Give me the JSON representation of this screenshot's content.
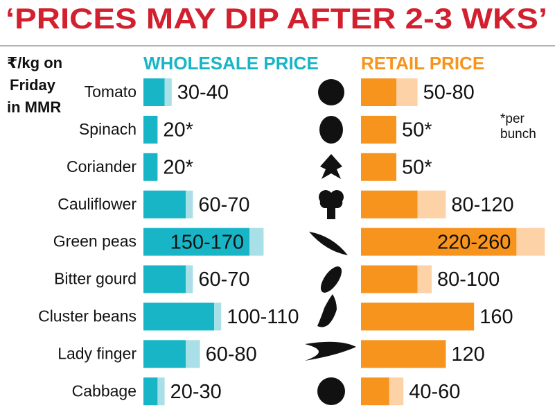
{
  "chart_data": {
    "type": "range-bar",
    "title": "‘PRICES MAY DIP AFTER 2-3 WKS’",
    "note": [
      "₹/kg on",
      "Friday",
      "in MMR"
    ],
    "footnote": [
      "*per",
      "bunch"
    ],
    "categories": [
      "Tomato",
      "Spinach",
      "Coriander",
      "Cauliflower",
      "Green peas",
      "Bitter gourd",
      "Cluster beans",
      "Lady finger",
      "Cabbage"
    ],
    "series": [
      {
        "name": "WHOLESALE PRICE",
        "color": "#17b5c6",
        "range_color": "#a9dfe7",
        "values": [
          [
            30,
            40
          ],
          [
            20
          ],
          [
            20
          ],
          [
            60,
            70
          ],
          [
            150,
            170
          ],
          [
            60,
            70
          ],
          [
            100,
            110
          ],
          [
            60,
            80
          ],
          [
            20,
            30
          ]
        ],
        "value_labels": [
          "30-40",
          "20*",
          "20*",
          "60-70",
          "150-170",
          "60-70",
          "100-110",
          "60-80",
          "20-30"
        ]
      },
      {
        "name": "RETAIL PRICE",
        "color": "#f7941d",
        "range_color": "#fdd2a6",
        "values": [
          [
            50,
            80
          ],
          [
            50
          ],
          [
            50
          ],
          [
            80,
            120
          ],
          [
            220,
            260
          ],
          [
            80,
            100
          ],
          [
            160
          ],
          [
            120
          ],
          [
            40,
            60
          ]
        ],
        "value_labels": [
          "50-80",
          "50*",
          "50*",
          "80-120",
          "220-260",
          "80-100",
          "160",
          "120",
          "40-60"
        ]
      }
    ]
  }
}
